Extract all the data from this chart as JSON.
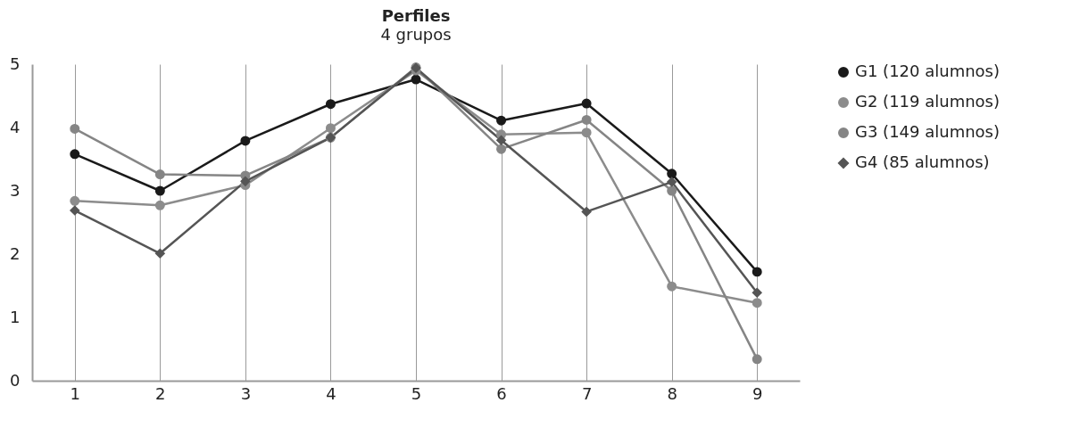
{
  "chart_data": {
    "type": "line",
    "title": "Perfiles",
    "subtitle": "4 grupos",
    "categories": [
      "1",
      "2",
      "3",
      "4",
      "5",
      "6",
      "7",
      "8",
      "9"
    ],
    "ylim": [
      0,
      5
    ],
    "yticks": [
      0,
      1,
      2,
      3,
      4,
      5
    ],
    "grid": "x",
    "legend": "right",
    "line_style": "solid",
    "series": [
      {
        "name": "G1 (120 alumnos)",
        "color": "#1a1a1a",
        "marker": "circle",
        "values": [
          3.58,
          3.0,
          3.79,
          4.37,
          4.76,
          4.11,
          4.38,
          3.27,
          1.72
        ]
      },
      {
        "name": "G2 (119 alumnos)",
        "color": "#8c8c8c",
        "marker": "circle",
        "values": [
          2.84,
          2.77,
          3.09,
          3.99,
          4.9,
          3.89,
          3.92,
          1.49,
          1.23
        ]
      },
      {
        "name": "G3 (149 alumnos)",
        "color": "#858585",
        "marker": "circle",
        "values": [
          3.98,
          3.26,
          3.24,
          3.84,
          4.95,
          3.66,
          4.12,
          3.0,
          0.34
        ]
      },
      {
        "name": "G4 (85 alumnos)",
        "color": "#555555",
        "marker": "diamond",
        "values": [
          2.69,
          2.01,
          3.15,
          3.84,
          4.94,
          3.8,
          2.67,
          3.14,
          1.39
        ]
      }
    ]
  }
}
